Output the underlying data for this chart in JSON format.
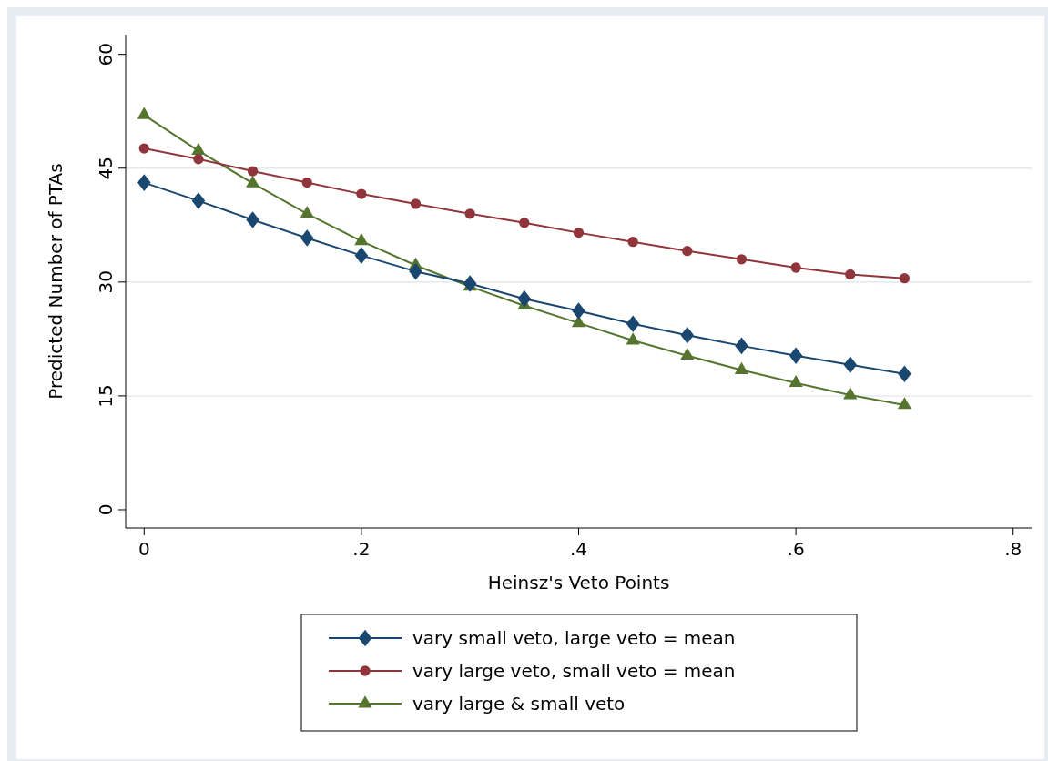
{
  "chart_data": {
    "type": "line",
    "xlabel": "Heinsz's Veto Points",
    "ylabel": "Predicted Number of PTAs",
    "x": [
      0,
      0.05,
      0.1,
      0.15,
      0.2,
      0.25,
      0.3,
      0.35,
      0.4,
      0.45,
      0.5,
      0.55,
      0.6,
      0.65,
      0.7
    ],
    "xlim": [
      -0.017,
      0.817
    ],
    "xticks": [
      0,
      {
        "value": 0.2,
        "label": ".2"
      },
      {
        "value": 0.4,
        "label": ".4"
      },
      {
        "value": 0.6,
        "label": ".6"
      },
      {
        "value": 0.8,
        "label": ".8"
      }
    ],
    "ylim": [
      -2.4,
      62.6
    ],
    "yticks": [
      0,
      15,
      30,
      45,
      60
    ],
    "grid": "y",
    "legend": "bottom",
    "line_style": "solid",
    "series": [
      {
        "name": "vary small veto, large veto = mean",
        "color": "#1a476f",
        "marker": "diamond",
        "values": [
          43.1,
          40.7,
          38.2,
          35.8,
          33.5,
          31.4,
          29.8,
          27.8,
          26.2,
          24.5,
          23.0,
          21.6,
          20.3,
          19.1,
          17.9
        ]
      },
      {
        "name": "vary large veto, small veto = mean",
        "color": "#90353b",
        "marker": "circle",
        "values": [
          47.6,
          46.2,
          44.6,
          43.1,
          41.6,
          40.3,
          39.0,
          37.8,
          36.5,
          35.3,
          34.1,
          33.0,
          31.9,
          31.0,
          30.5
        ]
      },
      {
        "name": "vary large & small veto",
        "color": "#55752f",
        "marker": "triangle",
        "values": [
          52.0,
          47.3,
          43.0,
          39.0,
          35.4,
          32.2,
          29.4,
          26.9,
          24.6,
          22.3,
          20.3,
          18.4,
          16.7,
          15.1,
          13.8
        ]
      }
    ]
  }
}
